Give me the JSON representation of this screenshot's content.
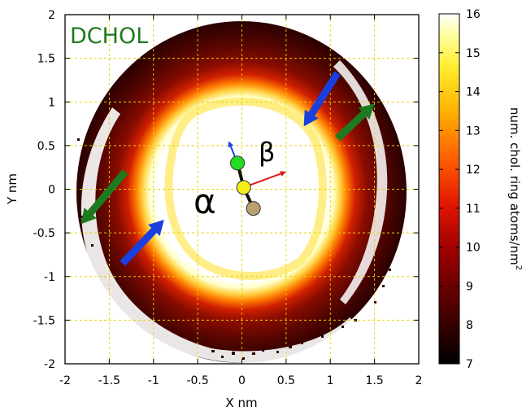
{
  "chart_data": {
    "type": "heatmap",
    "title": "DCHOL",
    "xlabel": "X nm",
    "ylabel": "Y nm",
    "xlim": [
      -2,
      2
    ],
    "ylim": [
      -2,
      2
    ],
    "xticks": [
      "-2",
      "-1.5",
      "-1",
      "-0.5",
      "0",
      "0.5",
      "1",
      "1.5",
      "2"
    ],
    "yticks": [
      "2",
      "1.5",
      "1",
      "0.5",
      "0",
      "-0.5",
      "-1",
      "-1.5",
      "-2"
    ],
    "grid": true,
    "colorbar": {
      "label": "num. chol. ring atoms/nm",
      "label_superscript": "2",
      "range": [
        7,
        16
      ],
      "ticks": [
        "16",
        "15",
        "14",
        "13",
        "12",
        "11",
        "10",
        "9",
        "8",
        "7"
      ]
    },
    "annotations": {
      "alpha": "α",
      "beta": "β"
    },
    "beads": [
      {
        "x": -0.05,
        "y": 0.3,
        "color": "#22dd22"
      },
      {
        "x": 0.02,
        "y": 0.02,
        "color": "#f2ee1a"
      },
      {
        "x": 0.13,
        "y": -0.22,
        "color": "#b8a070"
      }
    ],
    "vectors": [
      {
        "x1": -0.05,
        "y1": 0.3,
        "x2": -0.15,
        "y2": 0.55,
        "color": "#1a3fe0"
      },
      {
        "x1": 0.02,
        "y1": 0.02,
        "x2": 0.5,
        "y2": 0.2,
        "color": "#e01818"
      }
    ],
    "arrows": [
      {
        "x1": 1.08,
        "y1": 1.33,
        "x2": 0.7,
        "y2": 0.72,
        "color": "#1a3fe0"
      },
      {
        "x1": -1.35,
        "y1": -0.85,
        "x2": -0.88,
        "y2": -0.35,
        "color": "#1a3fe0"
      },
      {
        "x1": 1.08,
        "y1": 0.58,
        "x2": 1.5,
        "y2": 0.98,
        "color": "#1e7a1e"
      },
      {
        "x1": -1.32,
        "y1": 0.2,
        "x2": -1.82,
        "y2": -0.4,
        "color": "#1e7a1e"
      }
    ]
  }
}
